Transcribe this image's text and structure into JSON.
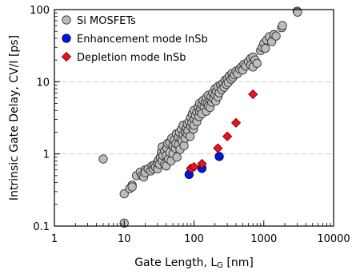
{
  "chart_data": {
    "type": "scatter",
    "xlabel": "Gate Length,  L",
    "xlabel_subscript": "G",
    "xlabel_unit": "[nm]",
    "ylabel": "Intrinsic Gate  Delay,  CV/I  [ps]",
    "xscale": "log",
    "yscale": "log",
    "xlim": [
      1,
      10000
    ],
    "ylim": [
      0.1,
      100
    ],
    "x_ticks": [
      1,
      10,
      100,
      1000,
      10000
    ],
    "x_tick_labels": [
      "1",
      "10",
      "100",
      "1000",
      "10000"
    ],
    "y_ticks": [
      0.1,
      1,
      10,
      100
    ],
    "y_tick_labels": [
      "0.1",
      "1",
      "10",
      "100"
    ],
    "grid": "horizontal dashed at 1 and 10",
    "legend_placement": "top-left",
    "series": [
      {
        "name": "Si MOSFETs",
        "marker": "circle",
        "color": "#bcbcbc",
        "edge": "#333333",
        "points": [
          [
            5,
            0.85
          ],
          [
            10,
            0.11
          ],
          [
            10,
            0.28
          ],
          [
            12,
            0.33
          ],
          [
            13,
            0.37
          ],
          [
            13,
            0.35
          ],
          [
            15,
            0.5
          ],
          [
            17,
            0.56
          ],
          [
            18,
            0.5
          ],
          [
            19,
            0.48
          ],
          [
            20,
            0.6
          ],
          [
            20,
            0.55
          ],
          [
            22,
            0.62
          ],
          [
            24,
            0.58
          ],
          [
            25,
            0.68
          ],
          [
            26,
            0.62
          ],
          [
            27,
            0.7
          ],
          [
            28,
            0.66
          ],
          [
            30,
            0.62
          ],
          [
            30,
            0.75
          ],
          [
            31,
            0.82
          ],
          [
            32,
            0.72
          ],
          [
            33,
            0.9
          ],
          [
            34,
            1.05
          ],
          [
            35,
            0.8
          ],
          [
            35,
            1.25
          ],
          [
            36,
            0.95
          ],
          [
            38,
            1.1
          ],
          [
            38,
            0.72
          ],
          [
            40,
            0.95
          ],
          [
            40,
            0.68
          ],
          [
            41,
            1.2
          ],
          [
            42,
            1.4
          ],
          [
            43,
            0.85
          ],
          [
            45,
            1.05
          ],
          [
            45,
            1.45
          ],
          [
            47,
            0.8
          ],
          [
            48,
            1.65
          ],
          [
            50,
            1.0
          ],
          [
            50,
            1.3
          ],
          [
            52,
            1.55
          ],
          [
            54,
            1.2
          ],
          [
            55,
            1.4
          ],
          [
            56,
            1.9
          ],
          [
            57,
            0.9
          ],
          [
            60,
            1.35
          ],
          [
            60,
            1.7
          ],
          [
            62,
            2.0
          ],
          [
            63,
            1.15
          ],
          [
            65,
            1.6
          ],
          [
            66,
            2.2
          ],
          [
            68,
            1.5
          ],
          [
            70,
            1.85
          ],
          [
            70,
            2.5
          ],
          [
            72,
            1.3
          ],
          [
            75,
            2.0
          ],
          [
            75,
            1.65
          ],
          [
            78,
            2.3
          ],
          [
            80,
            1.9
          ],
          [
            80,
            2.6
          ],
          [
            82,
            2.1
          ],
          [
            85,
            2.8
          ],
          [
            88,
            1.75
          ],
          [
            90,
            2.4
          ],
          [
            90,
            3.2
          ],
          [
            93,
            2.7
          ],
          [
            95,
            3.6
          ],
          [
            98,
            2.2
          ],
          [
            100,
            3.0
          ],
          [
            100,
            4.0
          ],
          [
            100,
            2.5
          ],
          [
            105,
            3.4
          ],
          [
            110,
            3.8
          ],
          [
            110,
            2.8
          ],
          [
            115,
            4.5
          ],
          [
            118,
            3.3
          ],
          [
            120,
            3.9
          ],
          [
            120,
            5.0
          ],
          [
            125,
            4.2
          ],
          [
            130,
            3.6
          ],
          [
            130,
            4.8
          ],
          [
            135,
            5.5
          ],
          [
            140,
            4.5
          ],
          [
            145,
            5.2
          ],
          [
            150,
            3.9
          ],
          [
            150,
            6.0
          ],
          [
            155,
            5.0
          ],
          [
            160,
            4.6
          ],
          [
            160,
            6.5
          ],
          [
            170,
            5.6
          ],
          [
            170,
            4.4
          ],
          [
            175,
            6.2
          ],
          [
            180,
            5.2
          ],
          [
            185,
            7.0
          ],
          [
            190,
            5.8
          ],
          [
            200,
            6.6
          ],
          [
            200,
            8.0
          ],
          [
            205,
            5.4
          ],
          [
            210,
            7.4
          ],
          [
            220,
            6.2
          ],
          [
            220,
            8.5
          ],
          [
            230,
            7.0
          ],
          [
            240,
            9.0
          ],
          [
            250,
            7.8
          ],
          [
            260,
            9.5
          ],
          [
            270,
            8.4
          ],
          [
            280,
            10.5
          ],
          [
            290,
            9.2
          ],
          [
            300,
            11.0
          ],
          [
            310,
            9.8
          ],
          [
            320,
            12.0
          ],
          [
            340,
            10.8
          ],
          [
            350,
            13.0
          ],
          [
            360,
            11.5
          ],
          [
            380,
            12.5
          ],
          [
            400,
            14.0
          ],
          [
            420,
            13.0
          ],
          [
            450,
            15.0
          ],
          [
            480,
            16.0
          ],
          [
            500,
            14.5
          ],
          [
            520,
            17.5
          ],
          [
            550,
            16.5
          ],
          [
            600,
            19.0
          ],
          [
            650,
            21.0
          ],
          [
            650,
            17.0
          ],
          [
            700,
            22.0
          ],
          [
            700,
            16.0
          ],
          [
            750,
            20.0
          ],
          [
            800,
            18.0
          ],
          [
            900,
            27.0
          ],
          [
            950,
            30.0
          ],
          [
            1000,
            34.0
          ],
          [
            1050,
            29.0
          ],
          [
            1100,
            38.0
          ],
          [
            1200,
            42.0
          ],
          [
            1300,
            36.0
          ],
          [
            1400,
            45.0
          ],
          [
            1500,
            43.0
          ],
          [
            1800,
            56.0
          ],
          [
            1850,
            60.0
          ],
          [
            3000,
            95.0
          ],
          [
            3050,
            92.0
          ]
        ]
      },
      {
        "name": "Enhancement mode InSb",
        "marker": "circle",
        "color": "#0019d9",
        "edge": "#000066",
        "points": [
          [
            85,
            0.52
          ],
          [
            130,
            0.63
          ],
          [
            230,
            0.92
          ]
        ]
      },
      {
        "name": "Depletion mode InSb",
        "marker": "diamond",
        "color": "#e8141e",
        "edge": "#7a0000",
        "points": [
          [
            90,
            0.63
          ],
          [
            100,
            0.66
          ],
          [
            130,
            0.73
          ],
          [
            220,
            1.2
          ],
          [
            300,
            1.75
          ],
          [
            400,
            2.7
          ],
          [
            700,
            6.7
          ]
        ]
      }
    ]
  }
}
